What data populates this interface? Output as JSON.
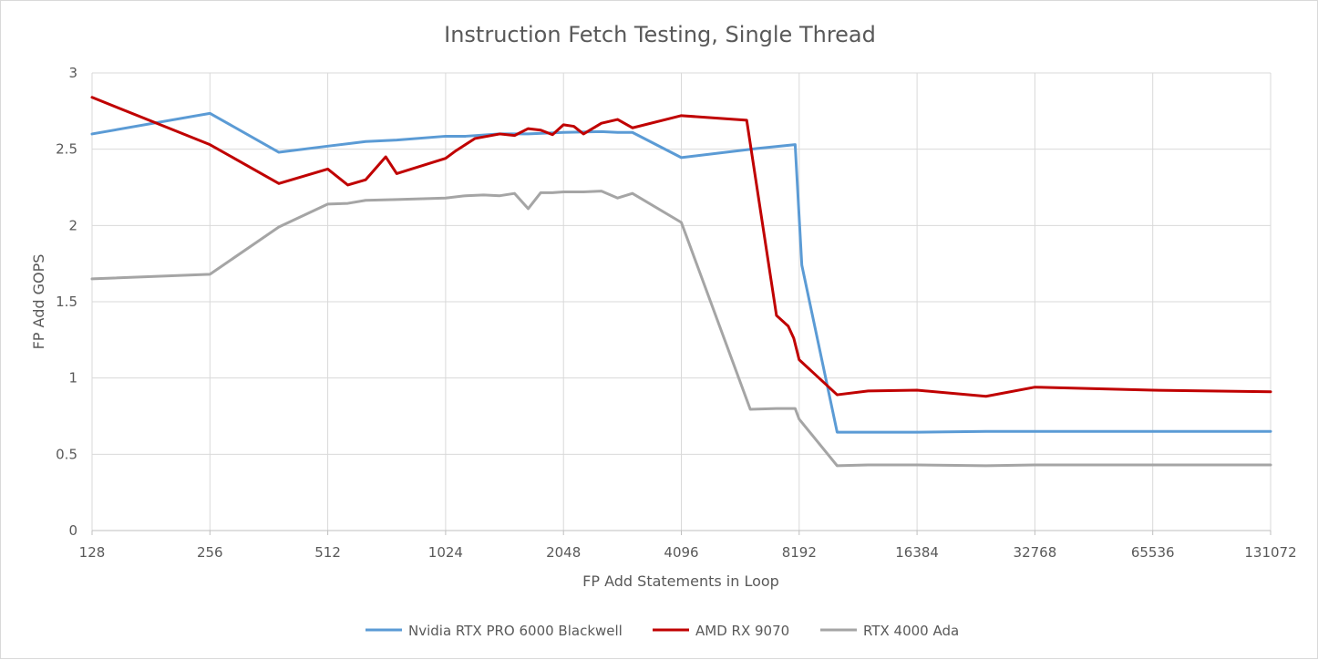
{
  "chart_data": {
    "type": "line",
    "title": "Instruction Fetch Testing, Single Thread",
    "xlabel": "FP Add Statements in Loop",
    "ylabel": "FP Add GOPS",
    "x_scale": "log2",
    "xlim": [
      128,
      131072
    ],
    "ylim": [
      0,
      3
    ],
    "x_ticks": [
      "128",
      "256",
      "512",
      "1024",
      "2048",
      "4096",
      "8192",
      "16384",
      "32768",
      "65536",
      "131072"
    ],
    "y_ticks": [
      "0",
      "0.5",
      "1",
      "1.5",
      "2",
      "2.5",
      "3"
    ],
    "grid": true,
    "legend_position": "bottom",
    "series": [
      {
        "name": "Nvidia RTX PRO 6000 Blackwell",
        "color": "#5b9bd5",
        "points": [
          [
            128,
            2.6
          ],
          [
            256,
            2.735
          ],
          [
            384,
            2.48
          ],
          [
            512,
            2.52
          ],
          [
            640,
            2.55
          ],
          [
            768,
            2.56
          ],
          [
            1024,
            2.585
          ],
          [
            1152,
            2.585
          ],
          [
            1408,
            2.6
          ],
          [
            1664,
            2.6
          ],
          [
            2048,
            2.61
          ],
          [
            2560,
            2.615
          ],
          [
            2816,
            2.61
          ],
          [
            3072,
            2.61
          ],
          [
            4096,
            2.445
          ],
          [
            6400,
            2.505
          ],
          [
            8000,
            2.53
          ],
          [
            8320,
            1.74
          ],
          [
            10240,
            0.645
          ],
          [
            16384,
            0.645
          ],
          [
            24576,
            0.65
          ],
          [
            32768,
            0.65
          ],
          [
            65536,
            0.65
          ],
          [
            131072,
            0.65
          ]
        ]
      },
      {
        "name": "AMD RX 9070",
        "color": "#c00000",
        "points": [
          [
            128,
            2.84
          ],
          [
            256,
            2.53
          ],
          [
            384,
            2.275
          ],
          [
            512,
            2.37
          ],
          [
            576,
            2.265
          ],
          [
            640,
            2.3
          ],
          [
            720,
            2.45
          ],
          [
            768,
            2.34
          ],
          [
            1024,
            2.44
          ],
          [
            1088,
            2.49
          ],
          [
            1216,
            2.57
          ],
          [
            1408,
            2.6
          ],
          [
            1536,
            2.59
          ],
          [
            1664,
            2.635
          ],
          [
            1792,
            2.625
          ],
          [
            1920,
            2.595
          ],
          [
            2048,
            2.66
          ],
          [
            2176,
            2.65
          ],
          [
            2304,
            2.6
          ],
          [
            2560,
            2.67
          ],
          [
            2816,
            2.695
          ],
          [
            3072,
            2.64
          ],
          [
            4096,
            2.72
          ],
          [
            6016,
            2.69
          ],
          [
            7168,
            1.41
          ],
          [
            7680,
            1.34
          ],
          [
            7936,
            1.26
          ],
          [
            8192,
            1.12
          ],
          [
            10240,
            0.89
          ],
          [
            12288,
            0.915
          ],
          [
            16384,
            0.92
          ],
          [
            24576,
            0.88
          ],
          [
            32768,
            0.94
          ],
          [
            65536,
            0.92
          ],
          [
            131072,
            0.91
          ]
        ]
      },
      {
        "name": "RTX 4000 Ada",
        "color": "#a5a5a5",
        "points": [
          [
            128,
            1.65
          ],
          [
            256,
            1.68
          ],
          [
            384,
            1.99
          ],
          [
            512,
            2.14
          ],
          [
            576,
            2.145
          ],
          [
            640,
            2.165
          ],
          [
            768,
            2.17
          ],
          [
            1024,
            2.18
          ],
          [
            1152,
            2.195
          ],
          [
            1280,
            2.2
          ],
          [
            1408,
            2.195
          ],
          [
            1536,
            2.21
          ],
          [
            1664,
            2.11
          ],
          [
            1792,
            2.215
          ],
          [
            1920,
            2.215
          ],
          [
            2048,
            2.22
          ],
          [
            2304,
            2.22
          ],
          [
            2560,
            2.225
          ],
          [
            2816,
            2.18
          ],
          [
            3072,
            2.21
          ],
          [
            4096,
            2.02
          ],
          [
            6144,
            0.795
          ],
          [
            7168,
            0.8
          ],
          [
            8000,
            0.8
          ],
          [
            8192,
            0.73
          ],
          [
            10240,
            0.425
          ],
          [
            12288,
            0.43
          ],
          [
            16384,
            0.43
          ],
          [
            24576,
            0.425
          ],
          [
            32768,
            0.43
          ],
          [
            65536,
            0.43
          ],
          [
            131072,
            0.43
          ]
        ]
      }
    ]
  }
}
